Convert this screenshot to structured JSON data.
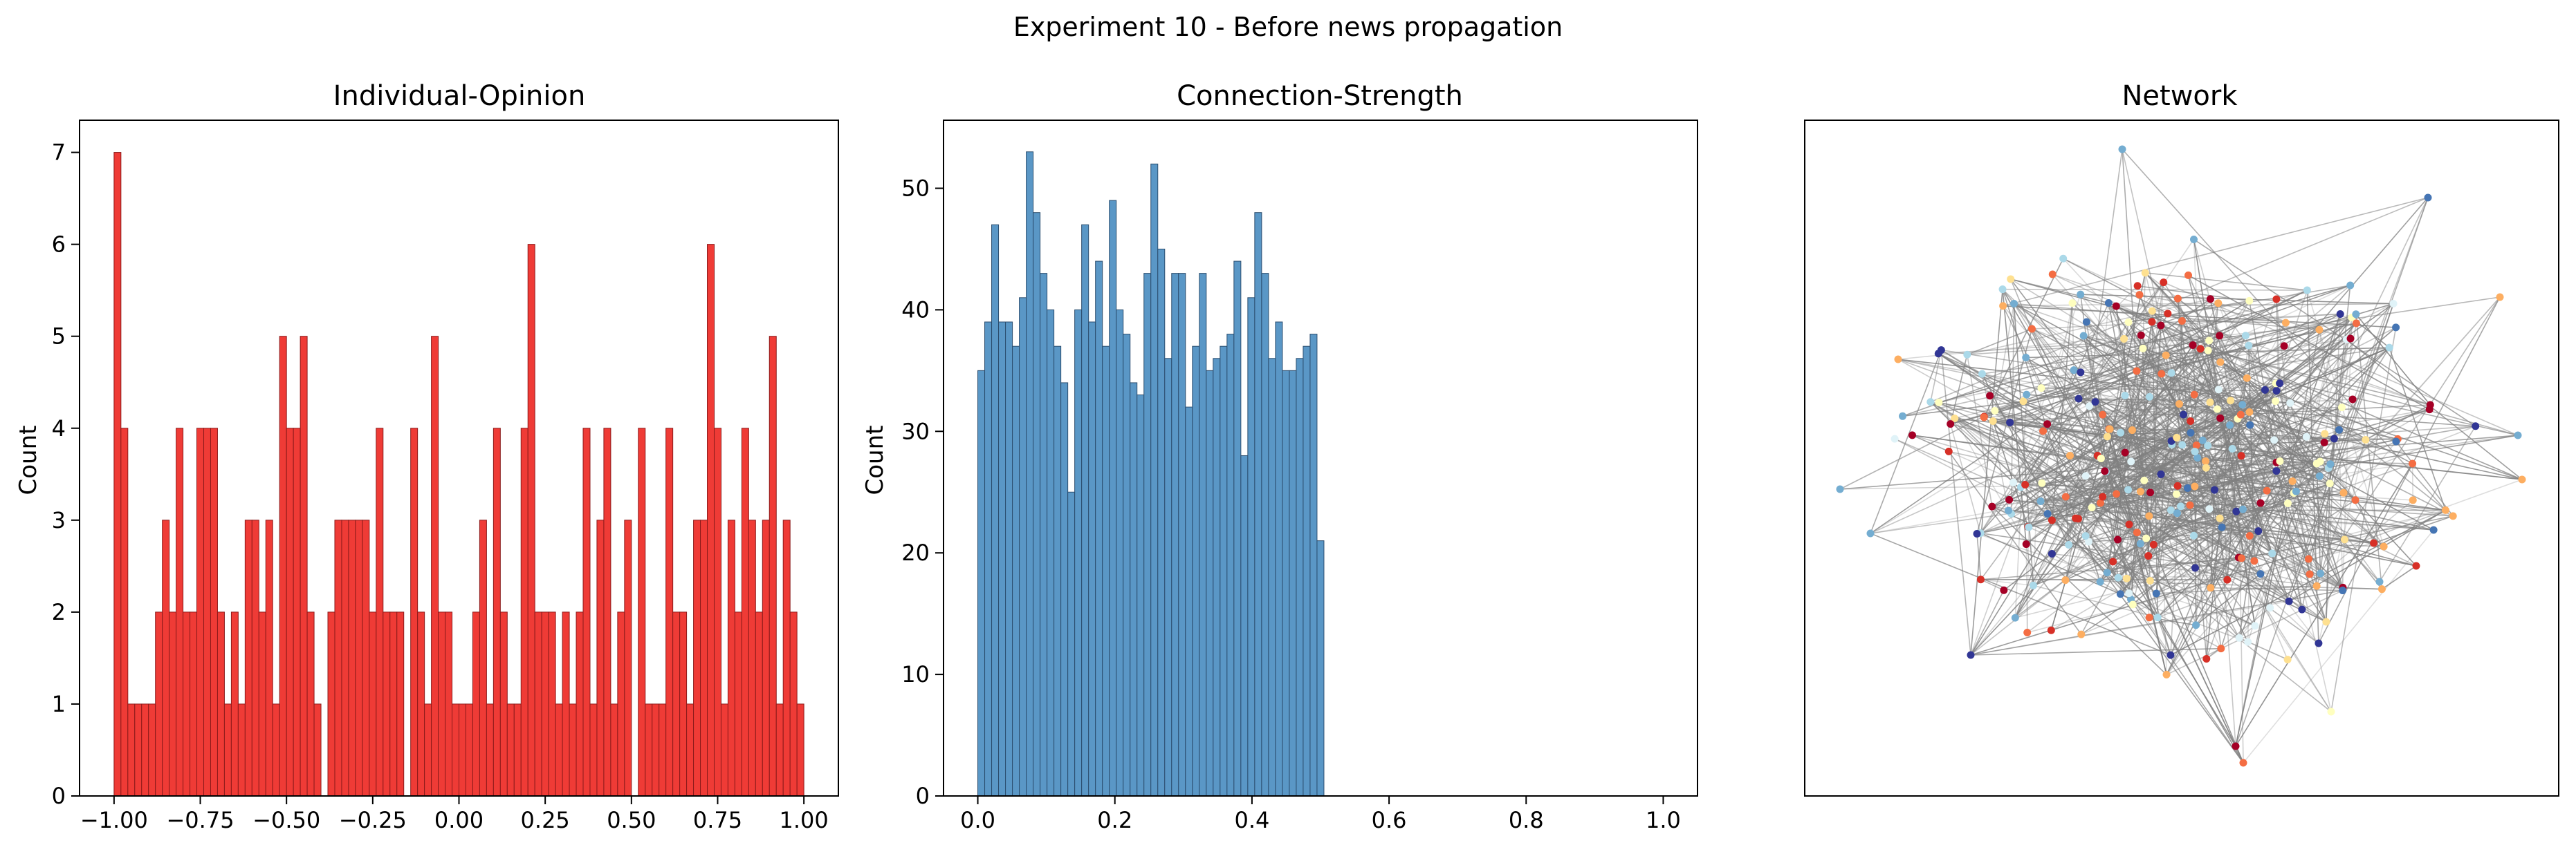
{
  "suptitle": "Experiment 10 - Before news propagation",
  "colors": {
    "opinion_bar": "#ef3b36",
    "opinion_edge": "#8b1a1a",
    "strength_bar": "#5a97c6",
    "strength_edge": "#2b4d6e",
    "network_edge": "#808080"
  },
  "chart_data": [
    {
      "type": "histogram",
      "title": "Individual-Opinion",
      "xlabel": "",
      "ylabel": "Count",
      "xlim": [
        -1.1,
        1.1
      ],
      "ylim": [
        0,
        7.35
      ],
      "xticks": [
        -1.0,
        -0.75,
        -0.5,
        -0.25,
        0.0,
        0.25,
        0.5,
        0.75,
        1.0
      ],
      "xtick_labels": [
        "−1.00",
        "−0.75",
        "−0.50",
        "−0.25",
        "0.00",
        "0.25",
        "0.50",
        "0.75",
        "1.00"
      ],
      "yticks": [
        0,
        1,
        2,
        3,
        4,
        5,
        6,
        7
      ],
      "ytick_labels": [
        "0",
        "1",
        "2",
        "3",
        "4",
        "5",
        "6",
        "7"
      ],
      "bin_range": [
        -1.0,
        1.0
      ],
      "bins": 100,
      "counts": [
        7,
        4,
        1,
        1,
        1,
        1,
        2,
        3,
        2,
        4,
        2,
        2,
        4,
        4,
        4,
        2,
        1,
        2,
        1,
        3,
        3,
        2,
        3,
        1,
        5,
        4,
        4,
        5,
        2,
        1,
        0,
        2,
        3,
        3,
        3,
        3,
        3,
        2,
        4,
        2,
        2,
        2,
        0,
        4,
        2,
        1,
        5,
        2,
        2,
        1,
        1,
        1,
        2,
        3,
        1,
        4,
        2,
        1,
        1,
        4,
        6,
        2,
        2,
        2,
        1,
        2,
        1,
        2,
        4,
        1,
        3,
        4,
        1,
        2,
        3,
        0,
        4,
        1,
        1,
        1,
        4,
        2,
        2,
        1,
        3,
        3,
        6,
        4,
        1,
        3,
        2,
        4,
        3,
        2,
        3,
        5,
        1,
        3,
        2,
        1
      ],
      "grid": false,
      "legend": "none"
    },
    {
      "type": "histogram",
      "title": "Connection-Strength",
      "xlabel": "",
      "ylabel": "Count",
      "xlim": [
        -0.05,
        1.05
      ],
      "ylim": [
        0,
        55.6
      ],
      "xticks": [
        0.0,
        0.2,
        0.4,
        0.6,
        0.8,
        1.0
      ],
      "xtick_labels": [
        "0.0",
        "0.2",
        "0.4",
        "0.6",
        "0.8",
        "1.0"
      ],
      "yticks": [
        0,
        10,
        20,
        30,
        40,
        50
      ],
      "ytick_labels": [
        "0",
        "10",
        "20",
        "30",
        "40",
        "50"
      ],
      "bin_range": [
        0.0,
        0.505
      ],
      "bins": 50,
      "counts": [
        35,
        39,
        47,
        39,
        39,
        37,
        41,
        53,
        48,
        43,
        40,
        37,
        34,
        25,
        40,
        47,
        39,
        44,
        37,
        49,
        40,
        38,
        34,
        33,
        43,
        52,
        45,
        36,
        43,
        43,
        32,
        37,
        43,
        35,
        36,
        37,
        38,
        44,
        28,
        41,
        48,
        43,
        36,
        39,
        35,
        35,
        36,
        37,
        38,
        21
      ],
      "grid": false,
      "legend": "none"
    },
    {
      "type": "network",
      "title": "Network",
      "node_palette": [
        "#313695",
        "#4575b4",
        "#74add1",
        "#abd9e9",
        "#e0f3f8",
        "#ffffbf",
        "#fee090",
        "#fdae61",
        "#f46d43",
        "#d73027",
        "#a50026"
      ]
    }
  ]
}
